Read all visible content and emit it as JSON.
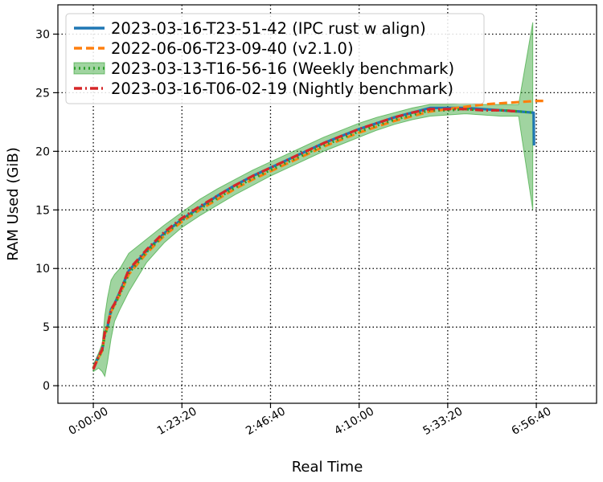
{
  "chart_data": {
    "type": "line",
    "title": "",
    "xlabel": "Real Time",
    "ylabel": "RAM Used (GiB)",
    "x_unit": "seconds",
    "xlim": [
      -2000,
      28400
    ],
    "ylim": [
      -1.5,
      32.5
    ],
    "xticks": [
      {
        "value": 0,
        "label": "0:00:00"
      },
      {
        "value": 5000,
        "label": "1:23:20"
      },
      {
        "value": 10000,
        "label": "2:46:40"
      },
      {
        "value": 15000,
        "label": "4:10:00"
      },
      {
        "value": 20000,
        "label": "5:33:20"
      },
      {
        "value": 25000,
        "label": "6:56:40"
      }
    ],
    "yticks": [
      0,
      5,
      10,
      15,
      20,
      25,
      30
    ],
    "grid": true,
    "grid_style": "dotted",
    "legend_position": "upper-left",
    "series": [
      {
        "name": "2023-03-16-T23-51-42 (IPC rust w align)",
        "color": "#1f77b4",
        "style": "solid",
        "x": [
          0,
          300,
          500,
          650,
          800,
          1000,
          1200,
          1500,
          2000,
          3000,
          4000,
          5000,
          6000,
          7000,
          8000,
          9000,
          10000,
          11000,
          12000,
          13000,
          14000,
          15000,
          16000,
          17000,
          18000,
          19000,
          20000,
          21000,
          22000,
          23000,
          24000,
          24800,
          24850,
          24870
        ],
        "y": [
          1.5,
          2.5,
          3.0,
          4.5,
          5.0,
          6.5,
          7.0,
          8.0,
          9.8,
          11.5,
          13.0,
          14.2,
          15.2,
          16.2,
          17.1,
          17.9,
          18.6,
          19.3,
          20.0,
          20.7,
          21.3,
          21.9,
          22.4,
          22.9,
          23.3,
          23.7,
          23.7,
          23.7,
          23.6,
          23.5,
          23.4,
          23.3,
          23.3,
          20.5
        ]
      },
      {
        "name": "2022-06-06-T23-09-40 (v2.1.0)",
        "color": "#ff7f0e",
        "style": "dashed",
        "x": [
          0,
          300,
          500,
          650,
          800,
          1000,
          1200,
          1500,
          2000,
          3000,
          4000,
          5000,
          6000,
          7000,
          8000,
          9000,
          10000,
          11000,
          12000,
          13000,
          14000,
          15000,
          16000,
          17000,
          18000,
          19000,
          20000,
          21000,
          22000,
          23000,
          24000,
          25000,
          25500
        ],
        "y": [
          1.5,
          2.4,
          3.0,
          4.4,
          5.0,
          6.3,
          6.9,
          7.8,
          9.5,
          11.3,
          12.8,
          14.0,
          15.0,
          15.9,
          16.8,
          17.6,
          18.3,
          19.0,
          19.7,
          20.4,
          21.0,
          21.6,
          22.1,
          22.6,
          23.0,
          23.4,
          23.6,
          23.8,
          24.0,
          24.1,
          24.2,
          24.3,
          24.3
        ]
      },
      {
        "name": "2023-03-13-T16-56-16 (Weekly benchmark)",
        "color": "#2ca02c",
        "style": "dotted",
        "x": [
          0,
          300,
          500,
          650,
          800,
          1000,
          1200,
          1500,
          2000,
          3000,
          4000,
          5000,
          6000,
          7000,
          8000,
          9000,
          10000,
          11000,
          12000,
          13000,
          14000,
          15000,
          16000,
          17000,
          18000,
          19000,
          20000,
          21000,
          22000,
          23000,
          24000,
          24800
        ],
        "y": [
          1.5,
          2.4,
          3.0,
          4.3,
          5.0,
          6.3,
          6.9,
          7.8,
          9.6,
          11.4,
          12.9,
          14.1,
          15.1,
          16.0,
          16.9,
          17.7,
          18.4,
          19.1,
          19.8,
          20.5,
          21.1,
          21.7,
          22.2,
          22.7,
          23.1,
          23.5,
          23.5,
          23.6,
          23.5,
          23.5,
          23.4,
          23.3
        ],
        "band_lower": [
          1.2,
          1.5,
          1.2,
          0.8,
          2.0,
          4.0,
          5.5,
          6.5,
          8.0,
          10.5,
          12.2,
          13.5,
          14.5,
          15.4,
          16.3,
          17.1,
          17.9,
          18.6,
          19.3,
          20.0,
          20.6,
          21.2,
          21.8,
          22.3,
          22.7,
          23.0,
          23.1,
          23.2,
          23.1,
          23.0,
          23.0,
          15.0
        ],
        "band_upper": [
          1.8,
          2.8,
          3.6,
          6.0,
          7.5,
          9.0,
          9.5,
          10.0,
          11.3,
          12.5,
          13.7,
          14.8,
          15.9,
          16.8,
          17.6,
          18.4,
          19.1,
          19.8,
          20.5,
          21.2,
          21.8,
          22.4,
          22.9,
          23.3,
          23.7,
          24.0,
          24.0,
          24.1,
          24.0,
          24.0,
          24.0,
          31.0
        ]
      },
      {
        "name": "2023-03-16-T06-02-19 (Nightly benchmark)",
        "color": "#d62728",
        "style": "dashdot",
        "x": [
          0,
          300,
          500,
          650,
          800,
          1000,
          1200,
          1500,
          2000,
          3000,
          4000,
          5000,
          6000,
          7000,
          8000,
          9000,
          10000,
          11000,
          12000,
          13000,
          14000,
          15000,
          16000,
          17000,
          18000,
          19000,
          20000,
          21000,
          22000,
          23000,
          24000
        ],
        "y": [
          1.4,
          2.5,
          3.1,
          4.6,
          5.1,
          6.5,
          7.0,
          8.0,
          9.9,
          11.6,
          13.1,
          14.3,
          15.3,
          16.2,
          17.1,
          17.9,
          18.6,
          19.3,
          20.0,
          20.7,
          21.3,
          21.9,
          22.4,
          22.9,
          23.3,
          23.6,
          23.6,
          23.6,
          23.5,
          23.5,
          23.4
        ]
      }
    ]
  }
}
